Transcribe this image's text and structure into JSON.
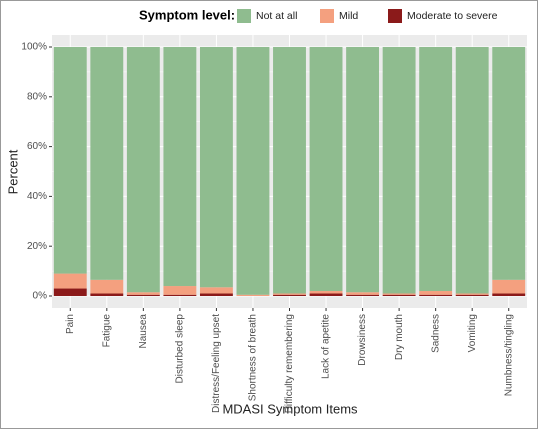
{
  "chart_data": {
    "type": "stacked-bar",
    "legend_title": "Symptom level:",
    "x_label": "MDASI Symptom Items",
    "y_label": "Percent",
    "categories": [
      "Pain",
      "Fatigue",
      "Nausea",
      "Disturbed sleep",
      "Distress/Feeling upset",
      "Shortness of breath",
      "Difficulty remembering",
      "Lack of apetite",
      "Drowsiness",
      "Dry mouth",
      "Sadness",
      "Vomiting",
      "Numbness/tingling"
    ],
    "series": [
      {
        "name": "Not at all",
        "color": "#8fbc8f",
        "values": [
          91,
          93.5,
          98.5,
          96,
          96.5,
          99.5,
          99,
          98,
          98.5,
          99,
          98,
          99,
          93.5
        ]
      },
      {
        "name": "Mild",
        "color": "#f4a07f",
        "values": [
          6,
          5.5,
          1,
          3.5,
          2.5,
          0.5,
          0.5,
          1,
          1,
          0.5,
          1.5,
          0.5,
          5.5
        ]
      },
      {
        "name": "Moderate to severe",
        "color": "#8b1a1a",
        "values": [
          3,
          1,
          0.5,
          0.5,
          1,
          0,
          0.5,
          1,
          0.5,
          0.5,
          0.5,
          0.5,
          1
        ]
      }
    ],
    "ylim": [
      0,
      100
    ],
    "yticks": [
      {
        "value": 0,
        "label": "0%"
      },
      {
        "value": 20,
        "label": "20%"
      },
      {
        "value": 40,
        "label": "40%"
      },
      {
        "value": 60,
        "label": "60%"
      },
      {
        "value": 80,
        "label": "80%"
      },
      {
        "value": 100,
        "label": "100%"
      }
    ],
    "grid": true,
    "legend_position": "top"
  }
}
